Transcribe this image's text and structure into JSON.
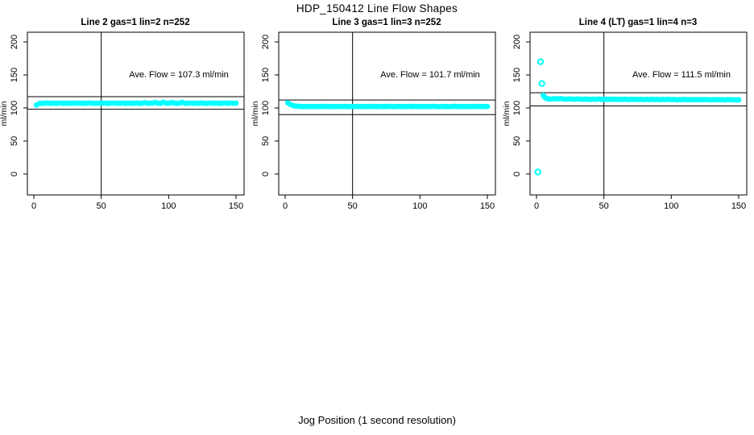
{
  "title": "HDP_150412  Line Flow Shapes",
  "xlabel": "Jog Position (1 second resolution)",
  "ylabel": "ml/min",
  "colors": {
    "points": "#00FFFF",
    "axis": "#000000",
    "background": "#FFFFFF"
  },
  "axes": {
    "xticks": [
      0,
      50,
      100,
      150
    ],
    "yticks": [
      0,
      50,
      100,
      150,
      200
    ],
    "xlim": [
      -6,
      156
    ],
    "ylim": [
      -32,
      215
    ],
    "grid": false
  },
  "chart_data": [
    {
      "type": "scatter",
      "title": "Line 2 gas=1 lin=2 n=252",
      "annotation": "Ave. Flow =  107.3  ml/min",
      "ave_flow": 107.3,
      "ref_line_x": 50,
      "ref_lines_y": [
        117,
        98
      ],
      "points": [
        [
          2,
          104.5
        ],
        [
          4,
          106.5
        ],
        [
          6,
          107.2
        ],
        [
          8,
          107.0
        ],
        [
          10,
          107.4
        ],
        [
          12,
          107.1
        ],
        [
          14,
          107.3
        ],
        [
          16,
          107.0
        ],
        [
          18,
          107.2
        ],
        [
          20,
          107.5
        ],
        [
          22,
          107.1
        ],
        [
          24,
          107.3
        ],
        [
          26,
          107.0
        ],
        [
          28,
          107.2
        ],
        [
          30,
          107.4
        ],
        [
          32,
          107.1
        ],
        [
          34,
          107.3
        ],
        [
          36,
          107.2
        ],
        [
          38,
          107.0
        ],
        [
          40,
          107.3
        ],
        [
          42,
          107.5
        ],
        [
          44,
          107.2
        ],
        [
          46,
          107.0
        ],
        [
          48,
          107.3
        ],
        [
          50,
          107.1
        ],
        [
          52,
          107.4
        ],
        [
          54,
          107.2
        ],
        [
          56,
          107.0
        ],
        [
          58,
          107.3
        ],
        [
          60,
          107.5
        ],
        [
          62,
          107.1
        ],
        [
          64,
          107.2
        ],
        [
          66,
          107.4
        ],
        [
          68,
          107.0
        ],
        [
          70,
          107.3
        ],
        [
          72,
          107.1
        ],
        [
          74,
          107.2
        ],
        [
          76,
          107.4
        ],
        [
          78,
          107.0
        ],
        [
          80,
          107.2
        ],
        [
          82,
          108.0
        ],
        [
          84,
          107.3
        ],
        [
          86,
          107.1
        ],
        [
          88,
          107.4
        ],
        [
          90,
          108.3
        ],
        [
          92,
          107.2
        ],
        [
          94,
          107.0
        ],
        [
          96,
          108.6
        ],
        [
          98,
          107.3
        ],
        [
          100,
          107.1
        ],
        [
          102,
          108.2
        ],
        [
          104,
          107.4
        ],
        [
          106,
          107.0
        ],
        [
          108,
          107.3
        ],
        [
          110,
          108.5
        ],
        [
          112,
          107.1
        ],
        [
          114,
          107.2
        ],
        [
          116,
          107.4
        ],
        [
          118,
          107.0
        ],
        [
          120,
          107.3
        ],
        [
          122,
          107.1
        ],
        [
          124,
          107.5
        ],
        [
          126,
          107.2
        ],
        [
          128,
          107.0
        ],
        [
          130,
          107.3
        ],
        [
          132,
          107.4
        ],
        [
          134,
          107.1
        ],
        [
          136,
          107.2
        ],
        [
          138,
          107.0
        ],
        [
          140,
          107.3
        ],
        [
          142,
          107.5
        ],
        [
          144,
          107.1
        ],
        [
          146,
          107.4
        ],
        [
          148,
          107.2
        ],
        [
          150,
          107.3
        ]
      ],
      "outliers": []
    },
    {
      "type": "scatter",
      "title": "Line 3 gas=1 lin=3 n=252",
      "annotation": "Ave. Flow =  101.7  ml/min",
      "ave_flow": 101.7,
      "ref_line_x": 50,
      "ref_lines_y": [
        112,
        90
      ],
      "points": [
        [
          2,
          107.8
        ],
        [
          4,
          105.0
        ],
        [
          6,
          103.5
        ],
        [
          8,
          102.8
        ],
        [
          10,
          102.4
        ],
        [
          12,
          102.2
        ],
        [
          14,
          102.0
        ],
        [
          16,
          102.3
        ],
        [
          18,
          102.1
        ],
        [
          20,
          102.2
        ],
        [
          22,
          102.0
        ],
        [
          24,
          102.3
        ],
        [
          26,
          102.1
        ],
        [
          28,
          102.2
        ],
        [
          30,
          102.4
        ],
        [
          32,
          102.0
        ],
        [
          34,
          102.2
        ],
        [
          36,
          102.1
        ],
        [
          38,
          102.3
        ],
        [
          40,
          102.0
        ],
        [
          42,
          102.2
        ],
        [
          44,
          102.4
        ],
        [
          46,
          102.1
        ],
        [
          48,
          102.0
        ],
        [
          50,
          102.3
        ],
        [
          52,
          102.1
        ],
        [
          54,
          102.2
        ],
        [
          56,
          102.0
        ],
        [
          58,
          102.3
        ],
        [
          60,
          102.1
        ],
        [
          62,
          102.4
        ],
        [
          64,
          102.0
        ],
        [
          66,
          102.2
        ],
        [
          68,
          102.1
        ],
        [
          70,
          102.3
        ],
        [
          72,
          102.0
        ],
        [
          74,
          102.2
        ],
        [
          76,
          102.1
        ],
        [
          78,
          102.4
        ],
        [
          80,
          102.0
        ],
        [
          82,
          102.2
        ],
        [
          84,
          102.3
        ],
        [
          86,
          102.1
        ],
        [
          88,
          102.0
        ],
        [
          90,
          102.2
        ],
        [
          92,
          102.4
        ],
        [
          94,
          102.1
        ],
        [
          96,
          102.3
        ],
        [
          98,
          102.0
        ],
        [
          100,
          102.2
        ],
        [
          102,
          102.1
        ],
        [
          104,
          102.3
        ],
        [
          106,
          102.0
        ],
        [
          108,
          102.2
        ],
        [
          110,
          102.4
        ],
        [
          112,
          102.1
        ],
        [
          114,
          102.0
        ],
        [
          116,
          102.3
        ],
        [
          118,
          102.2
        ],
        [
          120,
          102.1
        ],
        [
          122,
          102.0
        ],
        [
          124,
          102.3
        ],
        [
          126,
          102.4
        ],
        [
          128,
          102.1
        ],
        [
          130,
          102.2
        ],
        [
          132,
          102.0
        ],
        [
          134,
          102.3
        ],
        [
          136,
          102.1
        ],
        [
          138,
          102.2
        ],
        [
          140,
          102.0
        ],
        [
          142,
          102.4
        ],
        [
          144,
          102.2
        ],
        [
          146,
          102.1
        ],
        [
          148,
          102.3
        ],
        [
          150,
          102.2
        ]
      ],
      "outliers": []
    },
    {
      "type": "scatter",
      "title": "Line 4 (LT) gas=1 lin=4 n=3",
      "annotation": "Ave. Flow =  111.5  ml/min",
      "ave_flow": 111.5,
      "ref_line_x": 50,
      "ref_lines_y": [
        123,
        103
      ],
      "points": [
        [
          5,
          119.0
        ],
        [
          6,
          116.5
        ],
        [
          7,
          115.0
        ],
        [
          8,
          114.0
        ],
        [
          9,
          113.6
        ],
        [
          10,
          113.4
        ],
        [
          12,
          113.6
        ],
        [
          14,
          114.0
        ],
        [
          16,
          113.8
        ],
        [
          18,
          114.2
        ],
        [
          20,
          113.5
        ],
        [
          22,
          113.3
        ],
        [
          24,
          113.6
        ],
        [
          26,
          113.4
        ],
        [
          28,
          113.2
        ],
        [
          30,
          113.5
        ],
        [
          32,
          113.3
        ],
        [
          34,
          113.1
        ],
        [
          36,
          113.4
        ],
        [
          38,
          113.2
        ],
        [
          40,
          113.0
        ],
        [
          42,
          113.3
        ],
        [
          44,
          113.1
        ],
        [
          46,
          113.4
        ],
        [
          48,
          113.0
        ],
        [
          50,
          113.2
        ],
        [
          52,
          113.1
        ],
        [
          54,
          113.3
        ],
        [
          56,
          113.0
        ],
        [
          58,
          113.2
        ],
        [
          60,
          112.9
        ],
        [
          62,
          113.1
        ],
        [
          64,
          113.0
        ],
        [
          66,
          113.2
        ],
        [
          68,
          112.8
        ],
        [
          70,
          113.0
        ],
        [
          72,
          112.9
        ],
        [
          74,
          113.1
        ],
        [
          76,
          112.8
        ],
        [
          78,
          113.0
        ],
        [
          80,
          112.7
        ],
        [
          82,
          112.9
        ],
        [
          84,
          112.8
        ],
        [
          86,
          113.0
        ],
        [
          88,
          112.7
        ],
        [
          90,
          112.9
        ],
        [
          92,
          112.6
        ],
        [
          94,
          112.8
        ],
        [
          96,
          112.7
        ],
        [
          98,
          112.9
        ],
        [
          100,
          112.6
        ],
        [
          102,
          112.8
        ],
        [
          104,
          112.5
        ],
        [
          106,
          112.7
        ],
        [
          108,
          112.6
        ],
        [
          110,
          112.8
        ],
        [
          112,
          112.5
        ],
        [
          114,
          112.7
        ],
        [
          116,
          112.4
        ],
        [
          118,
          112.6
        ],
        [
          120,
          112.5
        ],
        [
          122,
          112.7
        ],
        [
          124,
          112.4
        ],
        [
          126,
          112.6
        ],
        [
          128,
          112.3
        ],
        [
          130,
          112.5
        ],
        [
          132,
          112.4
        ],
        [
          134,
          112.6
        ],
        [
          136,
          112.3
        ],
        [
          138,
          112.5
        ],
        [
          140,
          112.2
        ],
        [
          142,
          112.6
        ],
        [
          144,
          112.3
        ],
        [
          146,
          112.5
        ],
        [
          148,
          112.2
        ],
        [
          150,
          112.4
        ]
      ],
      "outliers": [
        [
          1,
          3
        ],
        [
          3,
          170
        ],
        [
          4,
          137
        ]
      ]
    }
  ]
}
